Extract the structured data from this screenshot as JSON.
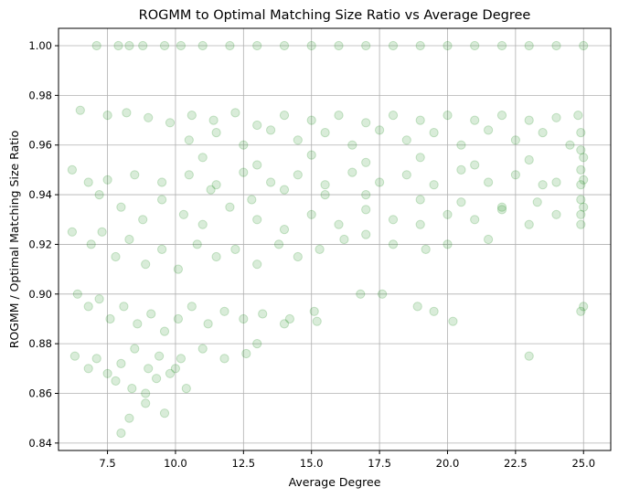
{
  "chart_data": {
    "type": "scatter",
    "title": "ROGMM to Optimal Matching Size Ratio vs Average Degree",
    "xlabel": "Average Degree",
    "ylabel": "ROGMM / Optimal Matching Size Ratio",
    "xlim": [
      5.7,
      26.0
    ],
    "ylim": [
      0.837,
      1.007
    ],
    "xticks": [
      "7.5",
      "10.0",
      "12.5",
      "15.0",
      "17.5",
      "20.0",
      "22.5",
      "25.0"
    ],
    "yticks": [
      "0.84",
      "0.86",
      "0.88",
      "0.90",
      "0.92",
      "0.94",
      "0.96",
      "0.98",
      "1.00"
    ],
    "grid": true,
    "marker_color": "#008000",
    "marker_alpha": 0.15,
    "series": [
      {
        "points": [
          [
            7.1,
            1.0
          ],
          [
            7.9,
            1.0
          ],
          [
            8.3,
            1.0
          ],
          [
            8.8,
            1.0
          ],
          [
            9.6,
            1.0
          ],
          [
            10.2,
            1.0
          ],
          [
            11.0,
            1.0
          ],
          [
            12.0,
            1.0
          ],
          [
            13.0,
            1.0
          ],
          [
            14.0,
            1.0
          ],
          [
            15.0,
            1.0
          ],
          [
            16.0,
            1.0
          ],
          [
            17.0,
            1.0
          ],
          [
            18.0,
            1.0
          ],
          [
            19.0,
            1.0
          ],
          [
            20.0,
            1.0
          ],
          [
            21.0,
            1.0
          ],
          [
            22.0,
            1.0
          ],
          [
            23.0,
            1.0
          ],
          [
            24.0,
            1.0
          ],
          [
            25.0,
            1.0
          ],
          [
            6.5,
            0.974
          ],
          [
            7.5,
            0.972
          ],
          [
            8.2,
            0.973
          ],
          [
            9.0,
            0.971
          ],
          [
            9.8,
            0.969
          ],
          [
            10.6,
            0.972
          ],
          [
            11.4,
            0.97
          ],
          [
            12.2,
            0.973
          ],
          [
            13.0,
            0.968
          ],
          [
            14.0,
            0.972
          ],
          [
            15.0,
            0.97
          ],
          [
            16.0,
            0.972
          ],
          [
            17.0,
            0.969
          ],
          [
            18.0,
            0.972
          ],
          [
            19.0,
            0.97
          ],
          [
            20.0,
            0.972
          ],
          [
            21.0,
            0.97
          ],
          [
            22.0,
            0.972
          ],
          [
            23.0,
            0.97
          ],
          [
            24.0,
            0.971
          ],
          [
            24.8,
            0.972
          ],
          [
            10.5,
            0.962
          ],
          [
            11.5,
            0.965
          ],
          [
            12.5,
            0.96
          ],
          [
            13.5,
            0.966
          ],
          [
            14.5,
            0.962
          ],
          [
            15.5,
            0.965
          ],
          [
            16.5,
            0.96
          ],
          [
            17.5,
            0.966
          ],
          [
            18.5,
            0.962
          ],
          [
            19.5,
            0.965
          ],
          [
            20.5,
            0.96
          ],
          [
            21.5,
            0.966
          ],
          [
            22.5,
            0.962
          ],
          [
            23.5,
            0.965
          ],
          [
            24.5,
            0.96
          ],
          [
            24.9,
            0.965
          ],
          [
            24.9,
            0.958
          ],
          [
            24.9,
            0.95
          ],
          [
            24.9,
            0.944
          ],
          [
            24.9,
            0.938
          ],
          [
            24.9,
            0.932
          ],
          [
            24.9,
            0.928
          ],
          [
            25.0,
            0.955
          ],
          [
            25.0,
            0.946
          ],
          [
            25.0,
            0.935
          ],
          [
            7.5,
            0.946
          ],
          [
            8.5,
            0.948
          ],
          [
            9.5,
            0.945
          ],
          [
            10.5,
            0.948
          ],
          [
            11.5,
            0.944
          ],
          [
            12.5,
            0.949
          ],
          [
            13.5,
            0.945
          ],
          [
            14.5,
            0.948
          ],
          [
            15.5,
            0.944
          ],
          [
            16.5,
            0.949
          ],
          [
            17.5,
            0.945
          ],
          [
            18.5,
            0.948
          ],
          [
            19.5,
            0.944
          ],
          [
            20.5,
            0.95
          ],
          [
            21.5,
            0.945
          ],
          [
            22.5,
            0.948
          ],
          [
            23.5,
            0.944
          ],
          [
            11.0,
            0.955
          ],
          [
            13.0,
            0.952
          ],
          [
            15.0,
            0.956
          ],
          [
            17.0,
            0.953
          ],
          [
            19.0,
            0.955
          ],
          [
            21.0,
            0.952
          ],
          [
            23.0,
            0.954
          ],
          [
            6.2,
            0.95
          ],
          [
            6.8,
            0.945
          ],
          [
            7.2,
            0.94
          ],
          [
            8.0,
            0.935
          ],
          [
            8.8,
            0.93
          ],
          [
            9.5,
            0.938
          ],
          [
            10.3,
            0.932
          ],
          [
            11.0,
            0.928
          ],
          [
            12.0,
            0.935
          ],
          [
            13.0,
            0.93
          ],
          [
            14.0,
            0.926
          ],
          [
            15.0,
            0.932
          ],
          [
            16.0,
            0.928
          ],
          [
            17.0,
            0.934
          ],
          [
            18.0,
            0.93
          ],
          [
            19.0,
            0.928
          ],
          [
            20.0,
            0.932
          ],
          [
            21.0,
            0.93
          ],
          [
            22.0,
            0.934
          ],
          [
            23.0,
            0.928
          ],
          [
            24.0,
            0.932
          ],
          [
            6.2,
            0.925
          ],
          [
            6.9,
            0.92
          ],
          [
            7.3,
            0.925
          ],
          [
            7.8,
            0.915
          ],
          [
            8.3,
            0.922
          ],
          [
            8.9,
            0.912
          ],
          [
            9.5,
            0.918
          ],
          [
            10.1,
            0.91
          ],
          [
            10.8,
            0.92
          ],
          [
            11.5,
            0.915
          ],
          [
            12.2,
            0.918
          ],
          [
            13.0,
            0.912
          ],
          [
            13.8,
            0.92
          ],
          [
            14.5,
            0.915
          ],
          [
            15.3,
            0.918
          ],
          [
            16.2,
            0.922
          ],
          [
            17.0,
            0.924
          ],
          [
            18.0,
            0.92
          ],
          [
            19.2,
            0.918
          ],
          [
            20.0,
            0.92
          ],
          [
            21.5,
            0.922
          ],
          [
            6.4,
            0.9
          ],
          [
            6.8,
            0.895
          ],
          [
            7.2,
            0.898
          ],
          [
            7.6,
            0.89
          ],
          [
            8.1,
            0.895
          ],
          [
            8.6,
            0.888
          ],
          [
            9.1,
            0.892
          ],
          [
            9.6,
            0.885
          ],
          [
            10.1,
            0.89
          ],
          [
            10.6,
            0.895
          ],
          [
            11.2,
            0.888
          ],
          [
            11.8,
            0.893
          ],
          [
            12.5,
            0.89
          ],
          [
            13.2,
            0.892
          ],
          [
            14.2,
            0.89
          ],
          [
            15.1,
            0.893
          ],
          [
            16.8,
            0.9
          ],
          [
            17.6,
            0.9
          ],
          [
            18.9,
            0.895
          ],
          [
            19.5,
            0.893
          ],
          [
            20.2,
            0.889
          ],
          [
            24.9,
            0.893
          ],
          [
            25.0,
            0.895
          ],
          [
            6.3,
            0.875
          ],
          [
            6.8,
            0.87
          ],
          [
            7.1,
            0.874
          ],
          [
            7.5,
            0.868
          ],
          [
            8.0,
            0.872
          ],
          [
            8.5,
            0.878
          ],
          [
            9.0,
            0.87
          ],
          [
            9.4,
            0.875
          ],
          [
            9.8,
            0.868
          ],
          [
            10.2,
            0.874
          ],
          [
            11.0,
            0.878
          ],
          [
            11.8,
            0.874
          ],
          [
            12.6,
            0.876
          ],
          [
            13.0,
            0.88
          ],
          [
            14.0,
            0.888
          ],
          [
            15.2,
            0.889
          ],
          [
            23.0,
            0.875
          ],
          [
            7.8,
            0.865
          ],
          [
            8.4,
            0.862
          ],
          [
            8.9,
            0.86
          ],
          [
            9.3,
            0.866
          ],
          [
            10.0,
            0.87
          ],
          [
            10.4,
            0.862
          ],
          [
            8.0,
            0.844
          ],
          [
            8.3,
            0.85
          ],
          [
            8.9,
            0.856
          ],
          [
            9.6,
            0.852
          ],
          [
            17.0,
            0.94
          ],
          [
            19.0,
            0.938
          ],
          [
            20.5,
            0.937
          ],
          [
            22.0,
            0.935
          ],
          [
            23.3,
            0.937
          ],
          [
            24.0,
            0.945
          ],
          [
            15.5,
            0.94
          ],
          [
            14.0,
            0.942
          ],
          [
            12.8,
            0.938
          ],
          [
            11.3,
            0.942
          ]
        ]
      }
    ]
  }
}
